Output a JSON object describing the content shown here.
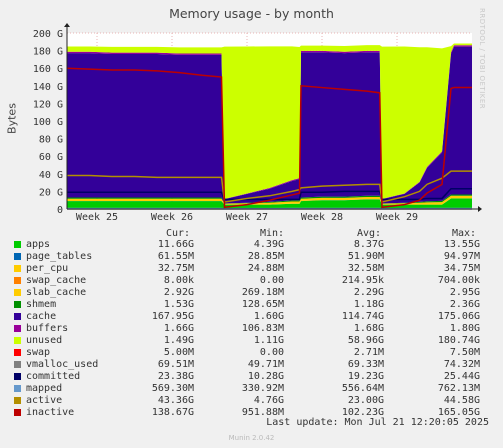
{
  "chart_data": {
    "type": "area",
    "title": "Memory usage - by month",
    "ylabel": "Bytes",
    "ylim": [
      0,
      200
    ],
    "y_unit": "G",
    "yticks": [
      "0",
      "20 G",
      "40 G",
      "60 G",
      "80 G",
      "100 G",
      "120 G",
      "140 G",
      "160 G",
      "180 G",
      "200 G"
    ],
    "x_range": [
      24.6,
      30.0
    ],
    "xticks": [
      {
        "label": "Week 25",
        "week": 25
      },
      {
        "label": "Week 26",
        "week": 26
      },
      {
        "label": "Week 27",
        "week": 27
      },
      {
        "label": "Week 28",
        "week": 28
      },
      {
        "label": "Week 29",
        "week": 29
      }
    ],
    "grid": true,
    "legend_columns": [
      "Cur:",
      "Min:",
      "Avg:",
      "Max:"
    ],
    "x": [
      24.6,
      24.9,
      25.2,
      25.5,
      25.8,
      26.1,
      26.4,
      26.66,
      26.7,
      27.0,
      27.3,
      27.6,
      27.7,
      27.72,
      28.0,
      28.3,
      28.6,
      28.77,
      28.8,
      29.1,
      29.3,
      29.4,
      29.6,
      29.72,
      29.76,
      29.85,
      30.0
    ],
    "stack": [
      {
        "name": "apps",
        "color": "#00cc00",
        "values": [
          9,
          9,
          9,
          9,
          9,
          9,
          9,
          9,
          5,
          5,
          5,
          6,
          6,
          9,
          10,
          10,
          11,
          11,
          5,
          5,
          5,
          5,
          5,
          12,
          12,
          12,
          12
        ]
      },
      {
        "name": "page_tables",
        "color": "#0066b3",
        "values": [
          0.05,
          0.05,
          0.05,
          0.05,
          0.05,
          0.05,
          0.05,
          0.05,
          0.03,
          0.03,
          0.03,
          0.03,
          0.03,
          0.05,
          0.05,
          0.05,
          0.05,
          0.05,
          0.03,
          0.03,
          0.03,
          0.03,
          0.03,
          0.06,
          0.06,
          0.06,
          0.06
        ]
      },
      {
        "name": "per_cpu",
        "color": "#ffcc00",
        "values": [
          0.03,
          0.03,
          0.03,
          0.03,
          0.03,
          0.03,
          0.03,
          0.03,
          0.03,
          0.03,
          0.03,
          0.03,
          0.03,
          0.03,
          0.03,
          0.03,
          0.03,
          0.03,
          0.03,
          0.03,
          0.03,
          0.03,
          0.03,
          0.03,
          0.03,
          0.03,
          0.03
        ]
      },
      {
        "name": "swap_cache",
        "color": "#ff8000",
        "values": [
          0,
          0,
          0,
          0,
          0,
          0,
          0,
          0,
          0,
          0,
          0,
          0,
          0,
          0,
          0,
          0,
          0,
          0,
          0,
          0,
          0,
          0,
          0,
          0,
          0,
          0,
          0
        ]
      },
      {
        "name": "slab_cache",
        "color": "#ffcc00",
        "values": [
          2.5,
          2.5,
          2.5,
          2.5,
          2.5,
          2.5,
          2.5,
          2.5,
          1,
          1.5,
          2,
          2.5,
          2.5,
          2.5,
          2.5,
          2.5,
          2.5,
          2.5,
          1,
          1.5,
          2,
          2.5,
          2.8,
          2.9,
          2.9,
          2.9,
          2.9
        ]
      },
      {
        "name": "shmem",
        "color": "#008f00",
        "values": [
          1.5,
          1.5,
          1.5,
          1.5,
          1.5,
          1.5,
          1.5,
          1.5,
          0.2,
          0.6,
          1,
          1.3,
          1.4,
          1.5,
          1.5,
          1.5,
          1.5,
          1.5,
          0.2,
          0.6,
          1,
          1.2,
          1.4,
          1.5,
          1.5,
          1.5,
          1.5
        ]
      },
      {
        "name": "cache",
        "color": "#330099",
        "values": [
          164,
          164,
          163,
          163,
          163,
          162,
          162,
          162,
          5,
          10,
          15,
          22,
          24,
          165,
          164,
          163,
          163,
          163,
          5,
          10,
          22,
          38,
          55,
          160,
          168,
          168,
          168
        ]
      },
      {
        "name": "buffers",
        "color": "#990099",
        "values": [
          1.6,
          1.6,
          1.6,
          1.6,
          1.6,
          1.6,
          1.6,
          1.6,
          0.2,
          0.5,
          0.8,
          1,
          1.1,
          1.6,
          1.6,
          1.6,
          1.6,
          1.6,
          0.2,
          0.5,
          0.8,
          1,
          1.2,
          1.6,
          1.6,
          1.6,
          1.6
        ]
      },
      {
        "name": "unused",
        "color": "#ccff00",
        "values": [
          6,
          6,
          6.5,
          6.5,
          6.5,
          7,
          7,
          7,
          173,
          167,
          161,
          152,
          149,
          6,
          6,
          6.5,
          6.5,
          6.5,
          173,
          167,
          153,
          136,
          117,
          7,
          2,
          2,
          2
        ]
      },
      {
        "name": "swap",
        "color": "#ff0000",
        "values": [
          0,
          0,
          0,
          0,
          0,
          0,
          0,
          0,
          0,
          0,
          0,
          0,
          0,
          0,
          0,
          0,
          0,
          0,
          0,
          0,
          0,
          0,
          0,
          0,
          0,
          0,
          0
        ]
      }
    ],
    "lines": [
      {
        "name": "vmalloc_used",
        "color": "#808080",
        "values": [
          0.07,
          0.07,
          0.07,
          0.07,
          0.07,
          0.07,
          0.07,
          0.07,
          0.05,
          0.05,
          0.05,
          0.05,
          0.05,
          0.07,
          0.07,
          0.07,
          0.07,
          0.07,
          0.05,
          0.05,
          0.05,
          0.05,
          0.05,
          0.07,
          0.07,
          0.07,
          0.07
        ]
      },
      {
        "name": "committed",
        "color": "#000066",
        "values": [
          19,
          19,
          19,
          19,
          19,
          19,
          19,
          19,
          11,
          11,
          11,
          11,
          11,
          19,
          19,
          20,
          20,
          20,
          11,
          11,
          11,
          12,
          12,
          23,
          23,
          23,
          23
        ]
      },
      {
        "name": "mapped",
        "color": "#6699cc",
        "values": [
          0.5,
          0.5,
          0.5,
          0.5,
          0.5,
          0.5,
          0.5,
          0.5,
          0.35,
          0.4,
          0.45,
          0.5,
          0.5,
          0.5,
          0.55,
          0.55,
          0.55,
          0.55,
          0.35,
          0.4,
          0.45,
          0.5,
          0.5,
          0.57,
          0.57,
          0.57,
          0.57
        ]
      },
      {
        "name": "active",
        "color": "#b38f00",
        "values": [
          38,
          38,
          37,
          37,
          36,
          36,
          36,
          36,
          8,
          12,
          15,
          20,
          22,
          24,
          26,
          27,
          28,
          28,
          8,
          14,
          20,
          28,
          35,
          43,
          43,
          43,
          43
        ]
      },
      {
        "name": "inactive",
        "color": "#bd0000",
        "values": [
          160,
          159,
          158,
          158,
          157,
          155,
          152,
          150,
          2,
          5,
          10,
          16,
          18,
          140,
          138,
          136,
          134,
          132,
          2,
          5,
          10,
          18,
          28,
          137,
          138,
          138,
          138
        ]
      }
    ]
  },
  "legend": [
    {
      "name": "apps",
      "color": "#00cc00",
      "cur": "11.66G",
      "min": "4.39G",
      "avg": "8.37G",
      "max": "13.55G"
    },
    {
      "name": "page_tables",
      "color": "#0066b3",
      "cur": "61.55M",
      "min": "28.85M",
      "avg": "51.90M",
      "max": "94.97M"
    },
    {
      "name": "per_cpu",
      "color": "#ffcc00",
      "cur": "32.75M",
      "min": "24.88M",
      "avg": "32.58M",
      "max": "34.75M"
    },
    {
      "name": "swap_cache",
      "color": "#ff8000",
      "cur": "8.00k",
      "min": "0.00",
      "avg": "214.95k",
      "max": "704.00k"
    },
    {
      "name": "slab_cache",
      "color": "#ffcc00",
      "cur": "2.92G",
      "min": "269.18M",
      "avg": "2.29G",
      "max": "2.95G"
    },
    {
      "name": "shmem",
      "color": "#008f00",
      "cur": "1.53G",
      "min": "128.65M",
      "avg": "1.18G",
      "max": "2.36G"
    },
    {
      "name": "cache",
      "color": "#330099",
      "cur": "167.95G",
      "min": "1.60G",
      "avg": "114.74G",
      "max": "175.06G"
    },
    {
      "name": "buffers",
      "color": "#990099",
      "cur": "1.66G",
      "min": "106.83M",
      "avg": "1.68G",
      "max": "1.80G"
    },
    {
      "name": "unused",
      "color": "#ccff00",
      "cur": "1.49G",
      "min": "1.11G",
      "avg": "58.96G",
      "max": "180.74G"
    },
    {
      "name": "swap",
      "color": "#ff0000",
      "cur": "5.00M",
      "min": "0.00",
      "avg": "2.71M",
      "max": "7.50M"
    },
    {
      "name": "vmalloc_used",
      "color": "#808080",
      "cur": "69.51M",
      "min": "49.71M",
      "avg": "69.33M",
      "max": "74.32M"
    },
    {
      "name": "committed",
      "color": "#000066",
      "cur": "23.38G",
      "min": "10.28G",
      "avg": "19.23G",
      "max": "25.44G"
    },
    {
      "name": "mapped",
      "color": "#6699cc",
      "cur": "569.30M",
      "min": "330.92M",
      "avg": "556.64M",
      "max": "762.13M"
    },
    {
      "name": "active",
      "color": "#b38f00",
      "cur": "43.36G",
      "min": "4.76G",
      "avg": "23.00G",
      "max": "44.58G"
    },
    {
      "name": "inactive",
      "color": "#bd0000",
      "cur": "138.67G",
      "min": "951.88M",
      "avg": "102.23G",
      "max": "165.05G"
    }
  ],
  "legend_header": {
    "cur": "Cur:",
    "min": "Min:",
    "avg": "Avg:",
    "max": "Max:"
  },
  "last_update": "Last update: Mon Jul 21 12:20:05 2025",
  "watermark": "RRDTOOL / TOBI OETIKER",
  "footer": "Munin 2.0.42"
}
